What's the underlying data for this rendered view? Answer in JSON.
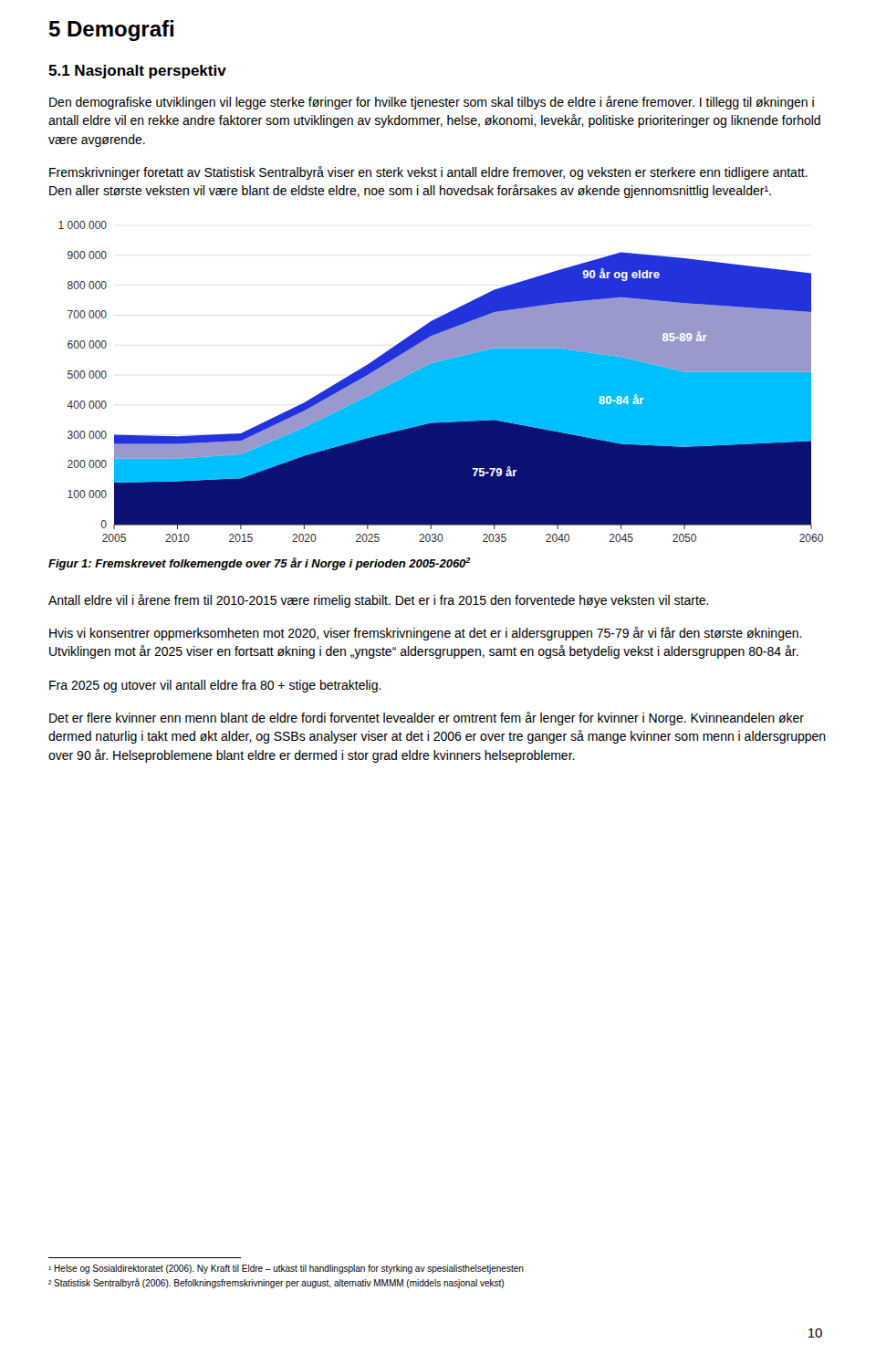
{
  "chart_data": {
    "type": "area",
    "stacked": true,
    "title": "Figur 1: Fremskrevet folkemengde over 75 år i Norge i perioden 2005-2060",
    "x": [
      2005,
      2010,
      2015,
      2020,
      2025,
      2030,
      2035,
      2040,
      2045,
      2050,
      2060
    ],
    "series": [
      {
        "name": "75-79 år",
        "color": "#0a1172",
        "values": [
          140000,
          145000,
          155000,
          230000,
          290000,
          340000,
          350000,
          310000,
          270000,
          260000,
          280000
        ]
      },
      {
        "name": "80-84 år",
        "color": "#00bfff",
        "values": [
          80000,
          75000,
          80000,
          95000,
          140000,
          200000,
          240000,
          280000,
          290000,
          250000,
          230000
        ]
      },
      {
        "name": "85-89 år",
        "color": "#9999cc",
        "values": [
          50000,
          50000,
          45000,
          55000,
          70000,
          90000,
          120000,
          150000,
          200000,
          230000,
          200000
        ]
      },
      {
        "name": "90 år og eldre",
        "color": "#2233dd",
        "values": [
          30000,
          25000,
          25000,
          28000,
          35000,
          50000,
          75000,
          110000,
          150000,
          150000,
          130000
        ]
      }
    ],
    "xlim": [
      2005,
      2060
    ],
    "xticks": [
      2005,
      2010,
      2015,
      2020,
      2025,
      2030,
      2035,
      2040,
      2045,
      2050,
      2060
    ],
    "ylim": [
      0,
      1000000
    ],
    "yticks": [
      0,
      {
        "value": 100000,
        "label": "100 000"
      },
      {
        "value": 200000,
        "label": "200 000"
      },
      {
        "value": 300000,
        "label": "300 000"
      },
      {
        "value": 400000,
        "label": "400 000"
      },
      {
        "value": 500000,
        "label": "500 000"
      },
      {
        "value": 600000,
        "label": "600 000"
      },
      {
        "value": 700000,
        "label": "700 000"
      },
      {
        "value": 800000,
        "label": "800 000"
      },
      {
        "value": 900000,
        "label": "900 000"
      },
      {
        "value": 1000000,
        "label": "1 000 000"
      }
    ],
    "grid": true
  },
  "page": {
    "page_title": "5 Demografi",
    "section_title": "5.1 Nasjonalt perspektiv",
    "paragraphs_before": [
      "Den demografiske utviklingen vil legge sterke føringer for hvilke tjenester som skal tilbys de eldre i årene fremover. I tillegg til økningen i antall eldre vil en rekke andre faktorer som utviklingen av sykdommer, helse, økonomi, levekår, politiske prioriteringer og liknende forhold være avgørende.",
      "Fremskrivninger foretatt av Statistisk Sentralbyrå viser en sterk vekst i antall eldre fremover, og veksten er sterkere enn tidligere antatt. Den aller største veksten vil være blant de eldste eldre, noe som i all hovedsak forårsakes av økende gjennomsnittlig levealder¹."
    ],
    "caption_superscript": "2",
    "paragraphs_after": [
      "Antall eldre vil i årene frem til 2010-2015 være rimelig stabilt. Det er i fra 2015 den forventede høye veksten vil starte.",
      "Hvis vi konsentrer oppmerksomheten mot 2020, viser fremskrivningene at det er i aldersgruppen 75-79 år vi får den største økningen. Utviklingen mot år 2025 viser en fortsatt økning i den „yngste“ aldersgruppen, samt en også betydelig vekst i aldersgruppen 80-84 år.",
      "Fra 2025 og utover vil antall eldre fra 80 + stige betraktelig.",
      "Det er flere kvinner enn menn blant de eldre fordi forventet levealder er omtrent fem år lenger for kvinner i Norge. Kvinneandelen øker dermed naturlig i takt med økt alder, og SSBs analyser viser at det i 2006 er over tre ganger så mange kvinner som menn i aldersgruppen over 90 år. Helseproblemene blant eldre er dermed i stor grad eldre kvinners helseproblemer."
    ],
    "footnotes": [
      "¹ Helse og Sosialdirektoratet (2006). Ny Kraft til Eldre – utkast til handlingsplan for styrking av spesialisthelsetjenesten",
      "² Statistisk Sentralbyrå (2006). Befolkningsfremskrivninger per august, alternativ MMMM (middels nasjonal vekst)"
    ],
    "page_number": "10"
  }
}
